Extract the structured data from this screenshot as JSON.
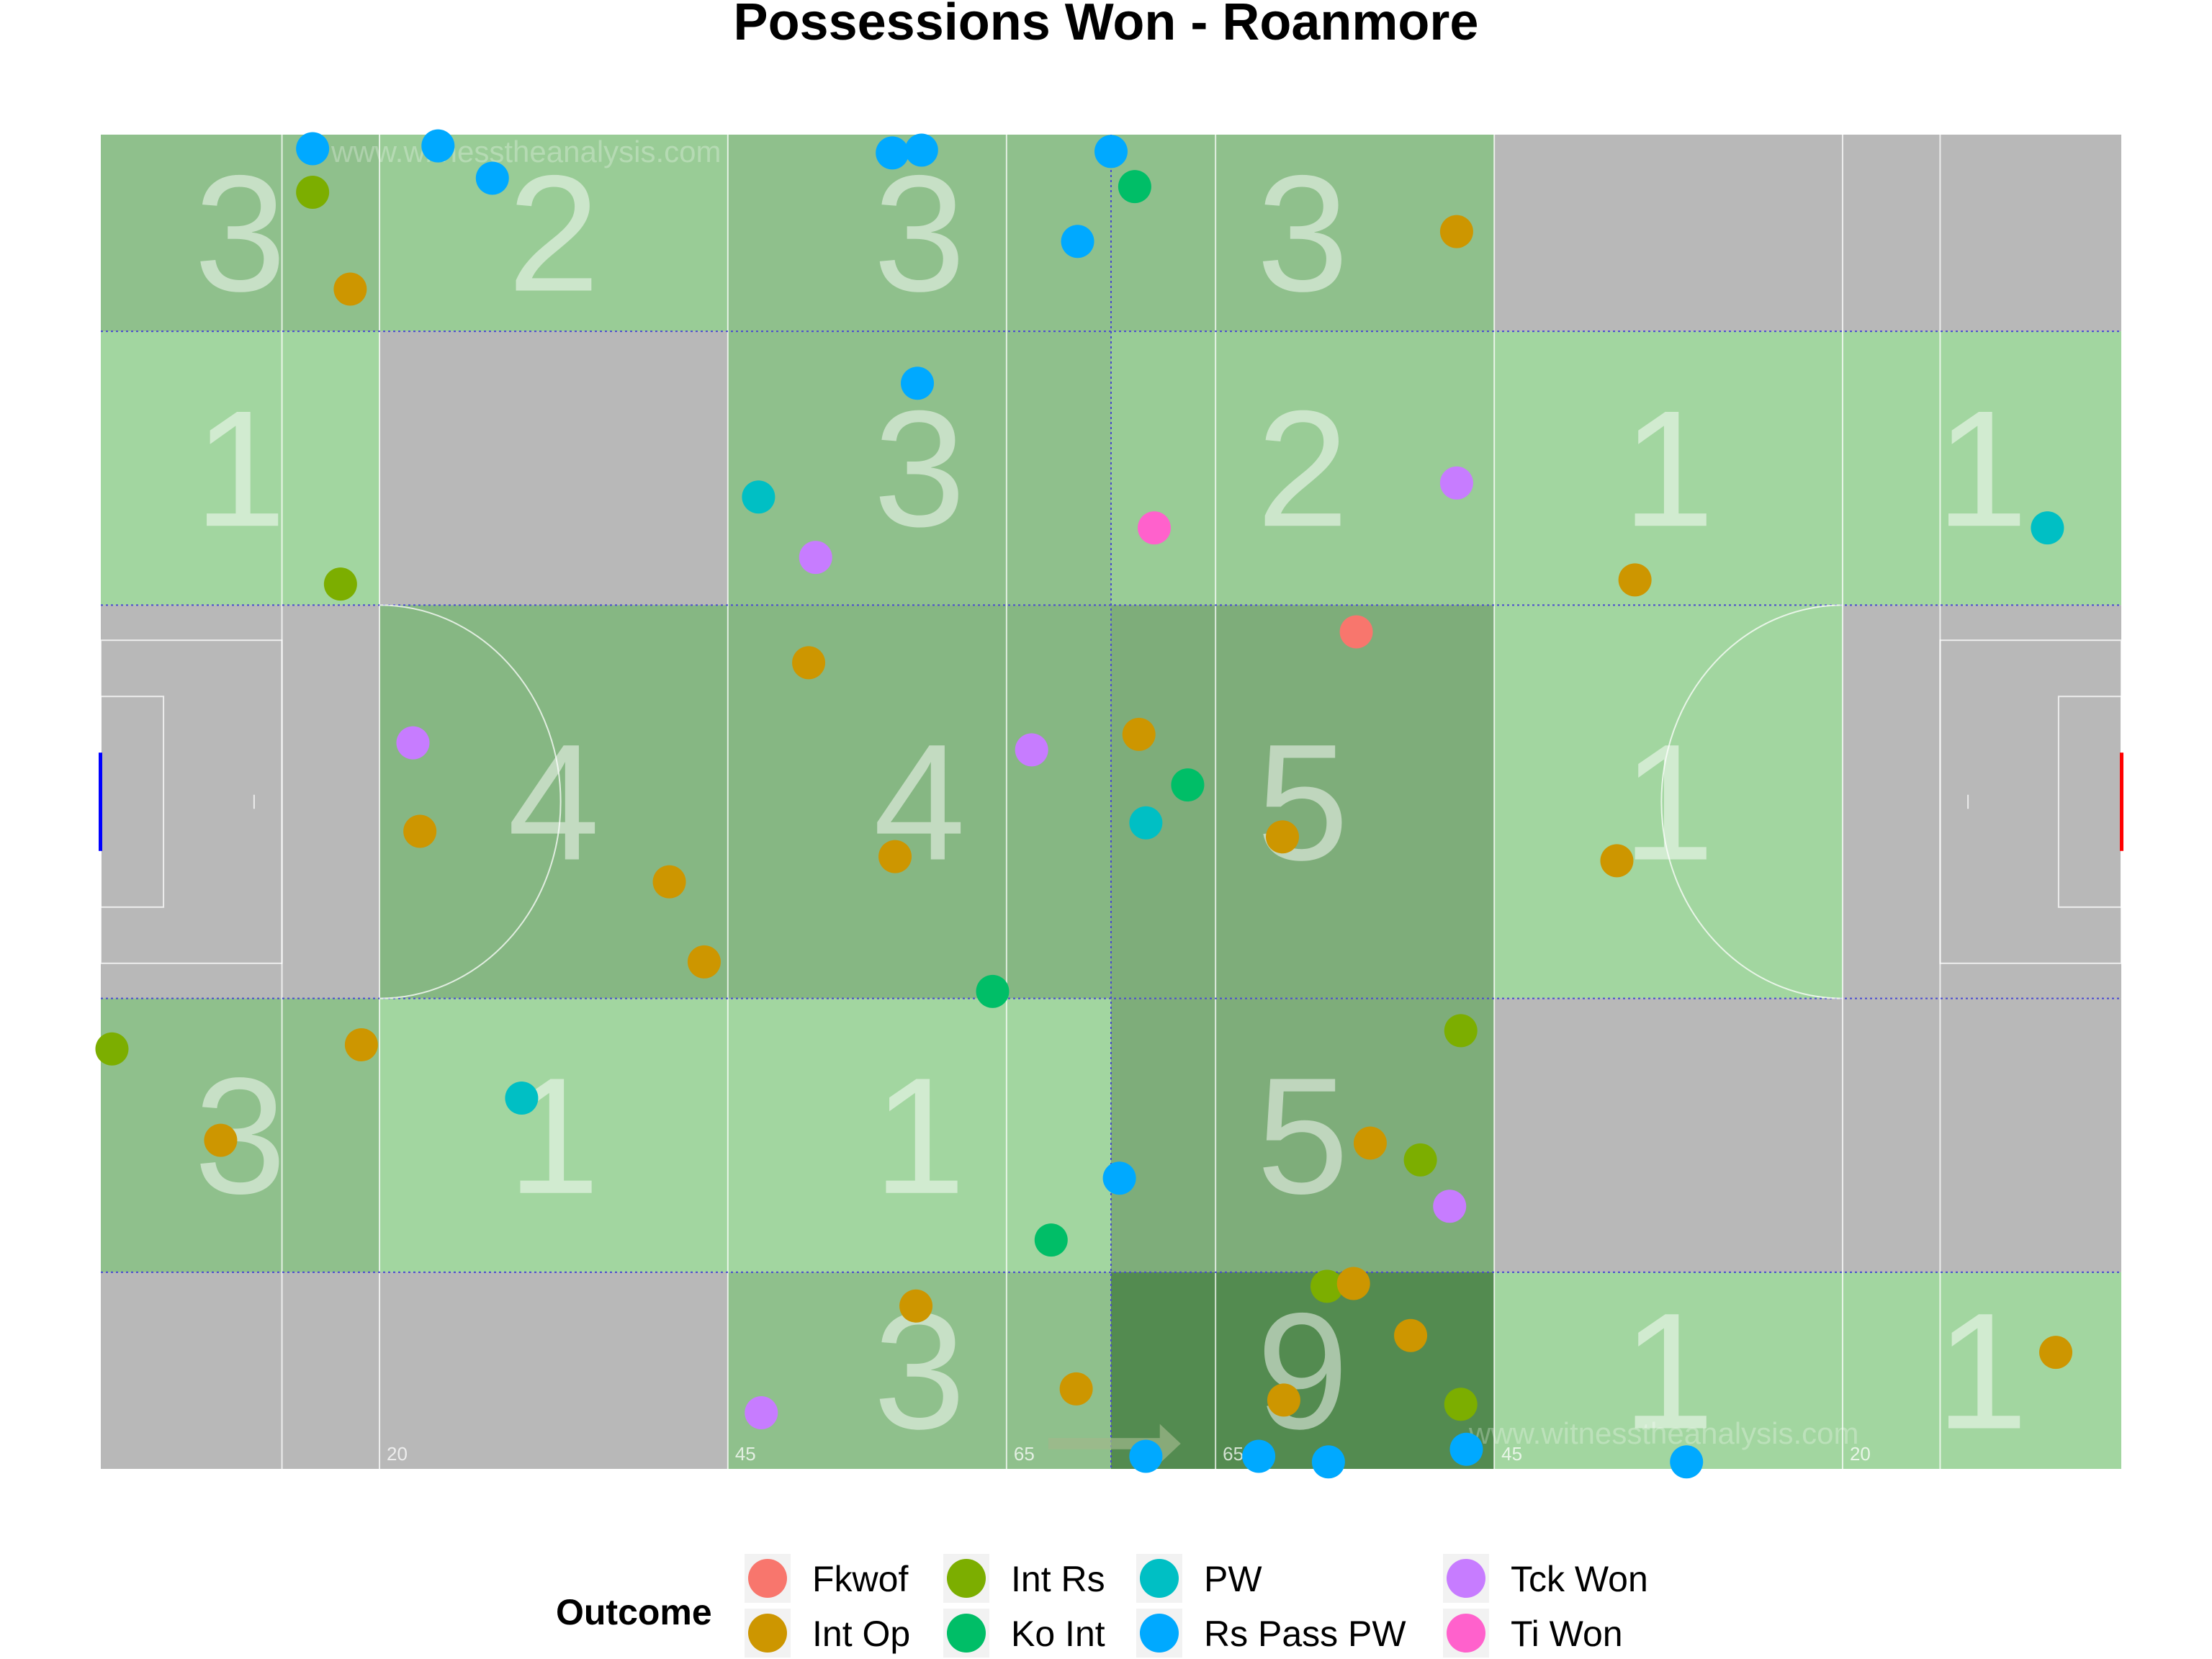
{
  "chart_data": {
    "type": "scatter",
    "title": "Possessions Won - Roanmore",
    "watermark": "www.witnesstheanalysis.com",
    "x_axis_marks": [
      20,
      45,
      65,
      65,
      45,
      20
    ],
    "xlim": [
      0,
      145
    ],
    "ylim": [
      0,
      95
    ],
    "legend": {
      "title": "Outcome",
      "position": "bottom",
      "entries": [
        {
          "name": "Fkwof",
          "color": "#F8766D"
        },
        {
          "name": "Int Op",
          "color": "#CD9600"
        },
        {
          "name": "Int Rs",
          "color": "#7CAE00"
        },
        {
          "name": "Ko Int",
          "color": "#00BE67"
        },
        {
          "name": "PW",
          "color": "#00BFC4"
        },
        {
          "name": "Rs Pass PW",
          "color": "#00A9FF"
        },
        {
          "name": "Tck Won",
          "color": "#C77CFF"
        },
        {
          "name": "Ti Won",
          "color": "#FF61CC"
        }
      ]
    },
    "zones": [
      {
        "x": [
          0,
          20
        ],
        "y": [
          81,
          95
        ],
        "count": 3
      },
      {
        "x": [
          20,
          45
        ],
        "y": [
          81,
          95
        ],
        "count": 2
      },
      {
        "x": [
          45,
          72.5
        ],
        "y": [
          81,
          95
        ],
        "count": 3
      },
      {
        "x": [
          72.5,
          100
        ],
        "y": [
          81,
          95
        ],
        "count": 3
      },
      {
        "x": [
          100,
          125
        ],
        "y": [
          81,
          95
        ],
        "count": 0
      },
      {
        "x": [
          125,
          145
        ],
        "y": [
          81,
          95
        ],
        "count": 0
      },
      {
        "x": [
          0,
          20
        ],
        "y": [
          61.5,
          81
        ],
        "count": 1
      },
      {
        "x": [
          20,
          45
        ],
        "y": [
          61.5,
          81
        ],
        "count": 0
      },
      {
        "x": [
          45,
          72.5
        ],
        "y": [
          61.5,
          81
        ],
        "count": 3
      },
      {
        "x": [
          72.5,
          100
        ],
        "y": [
          61.5,
          81
        ],
        "count": 2
      },
      {
        "x": [
          100,
          125
        ],
        "y": [
          61.5,
          81
        ],
        "count": 1
      },
      {
        "x": [
          125,
          145
        ],
        "y": [
          61.5,
          81
        ],
        "count": 1
      },
      {
        "x": [
          0,
          20
        ],
        "y": [
          33.5,
          61.5
        ],
        "count": 0
      },
      {
        "x": [
          20,
          45
        ],
        "y": [
          33.5,
          61.5
        ],
        "count": 4
      },
      {
        "x": [
          45,
          72.5
        ],
        "y": [
          33.5,
          61.5
        ],
        "count": 4
      },
      {
        "x": [
          72.5,
          100
        ],
        "y": [
          33.5,
          61.5
        ],
        "count": 5
      },
      {
        "x": [
          100,
          125
        ],
        "y": [
          33.5,
          61.5
        ],
        "count": 1
      },
      {
        "x": [
          125,
          145
        ],
        "y": [
          33.5,
          61.5
        ],
        "count": 0
      },
      {
        "x": [
          0,
          20
        ],
        "y": [
          14,
          33.5
        ],
        "count": 3
      },
      {
        "x": [
          20,
          45
        ],
        "y": [
          14,
          33.5
        ],
        "count": 1
      },
      {
        "x": [
          45,
          72.5
        ],
        "y": [
          14,
          33.5
        ],
        "count": 1
      },
      {
        "x": [
          72.5,
          100
        ],
        "y": [
          14,
          33.5
        ],
        "count": 5
      },
      {
        "x": [
          100,
          125
        ],
        "y": [
          14,
          33.5
        ],
        "count": 0
      },
      {
        "x": [
          125,
          145
        ],
        "y": [
          14,
          33.5
        ],
        "count": 0
      },
      {
        "x": [
          0,
          20
        ],
        "y": [
          0,
          14
        ],
        "count": 0
      },
      {
        "x": [
          20,
          45
        ],
        "y": [
          0,
          14
        ],
        "count": 0
      },
      {
        "x": [
          45,
          72.5
        ],
        "y": [
          0,
          14
        ],
        "count": 3
      },
      {
        "x": [
          72.5,
          100
        ],
        "y": [
          0,
          14
        ],
        "count": 9
      },
      {
        "x": [
          100,
          125
        ],
        "y": [
          0,
          14
        ],
        "count": 1
      },
      {
        "x": [
          125,
          145
        ],
        "y": [
          0,
          14
        ],
        "count": 1
      }
    ],
    "points": [
      {
        "x": 15.2,
        "y": 94.0,
        "outcome": "Rs Pass PW"
      },
      {
        "x": 24.2,
        "y": 94.2,
        "outcome": "Rs Pass PW"
      },
      {
        "x": 28.1,
        "y": 91.9,
        "outcome": "Rs Pass PW"
      },
      {
        "x": 56.8,
        "y": 93.7,
        "outcome": "Rs Pass PW"
      },
      {
        "x": 58.9,
        "y": 93.9,
        "outcome": "Rs Pass PW"
      },
      {
        "x": 72.5,
        "y": 93.8,
        "outcome": "Rs Pass PW"
      },
      {
        "x": 70.1,
        "y": 87.4,
        "outcome": "Rs Pass PW"
      },
      {
        "x": 58.6,
        "y": 77.3,
        "outcome": "Rs Pass PW"
      },
      {
        "x": 73.1,
        "y": 20.7,
        "outcome": "Rs Pass PW"
      },
      {
        "x": 75.0,
        "y": 0.9,
        "outcome": "Rs Pass PW"
      },
      {
        "x": 83.1,
        "y": 0.9,
        "outcome": "Rs Pass PW"
      },
      {
        "x": 88.1,
        "y": 0.5,
        "outcome": "Rs Pass PW"
      },
      {
        "x": 98.0,
        "y": 1.4,
        "outcome": "Rs Pass PW"
      },
      {
        "x": 113.8,
        "y": 0.5,
        "outcome": "Rs Pass PW"
      },
      {
        "x": 15.2,
        "y": 90.9,
        "outcome": "Int Rs"
      },
      {
        "x": 17.2,
        "y": 63.0,
        "outcome": "Int Rs"
      },
      {
        "x": 0.8,
        "y": 29.9,
        "outcome": "Int Rs"
      },
      {
        "x": 97.6,
        "y": 31.2,
        "outcome": "Int Rs"
      },
      {
        "x": 94.7,
        "y": 22.0,
        "outcome": "Int Rs"
      },
      {
        "x": 88.0,
        "y": 13.0,
        "outcome": "Int Rs"
      },
      {
        "x": 97.6,
        "y": 4.6,
        "outcome": "Int Rs"
      },
      {
        "x": 17.9,
        "y": 84.0,
        "outcome": "Int Op"
      },
      {
        "x": 97.3,
        "y": 88.1,
        "outcome": "Int Op"
      },
      {
        "x": 110.1,
        "y": 63.3,
        "outcome": "Int Op"
      },
      {
        "x": 50.8,
        "y": 57.4,
        "outcome": "Int Op"
      },
      {
        "x": 74.5,
        "y": 52.3,
        "outcome": "Int Op"
      },
      {
        "x": 22.9,
        "y": 45.4,
        "outcome": "Int Op"
      },
      {
        "x": 57.0,
        "y": 43.6,
        "outcome": "Int Op"
      },
      {
        "x": 84.8,
        "y": 45.0,
        "outcome": "Int Op"
      },
      {
        "x": 108.8,
        "y": 43.3,
        "outcome": "Int Op"
      },
      {
        "x": 40.8,
        "y": 41.8,
        "outcome": "Int Op"
      },
      {
        "x": 43.3,
        "y": 36.1,
        "outcome": "Int Op"
      },
      {
        "x": 18.7,
        "y": 30.2,
        "outcome": "Int Op"
      },
      {
        "x": 8.6,
        "y": 23.4,
        "outcome": "Int Op"
      },
      {
        "x": 91.1,
        "y": 23.2,
        "outcome": "Int Op"
      },
      {
        "x": 89.9,
        "y": 13.2,
        "outcome": "Int Op"
      },
      {
        "x": 58.5,
        "y": 11.6,
        "outcome": "Int Op"
      },
      {
        "x": 94.0,
        "y": 9.5,
        "outcome": "Int Op"
      },
      {
        "x": 70.0,
        "y": 5.7,
        "outcome": "Int Op"
      },
      {
        "x": 84.9,
        "y": 4.9,
        "outcome": "Int Op"
      },
      {
        "x": 140.3,
        "y": 8.3,
        "outcome": "Int Op"
      },
      {
        "x": 74.2,
        "y": 91.3,
        "outcome": "Ko Int"
      },
      {
        "x": 78.0,
        "y": 48.7,
        "outcome": "Ko Int"
      },
      {
        "x": 64.0,
        "y": 34.0,
        "outcome": "Ko Int"
      },
      {
        "x": 68.2,
        "y": 16.3,
        "outcome": "Ko Int"
      },
      {
        "x": 47.2,
        "y": 69.2,
        "outcome": "PW"
      },
      {
        "x": 75.0,
        "y": 46.0,
        "outcome": "PW"
      },
      {
        "x": 30.2,
        "y": 26.4,
        "outcome": "PW"
      },
      {
        "x": 139.7,
        "y": 67.0,
        "outcome": "PW"
      },
      {
        "x": 51.3,
        "y": 64.9,
        "outcome": "Tck Won"
      },
      {
        "x": 97.3,
        "y": 70.2,
        "outcome": "Tck Won"
      },
      {
        "x": 22.4,
        "y": 51.7,
        "outcome": "Tck Won"
      },
      {
        "x": 66.8,
        "y": 51.2,
        "outcome": "Tck Won"
      },
      {
        "x": 96.8,
        "y": 18.7,
        "outcome": "Tck Won"
      },
      {
        "x": 47.4,
        "y": 4.0,
        "outcome": "Tck Won"
      },
      {
        "x": 90.1,
        "y": 59.6,
        "outcome": "Fkwof"
      },
      {
        "x": 75.6,
        "y": 67.0,
        "outcome": "Ti Won"
      }
    ]
  }
}
